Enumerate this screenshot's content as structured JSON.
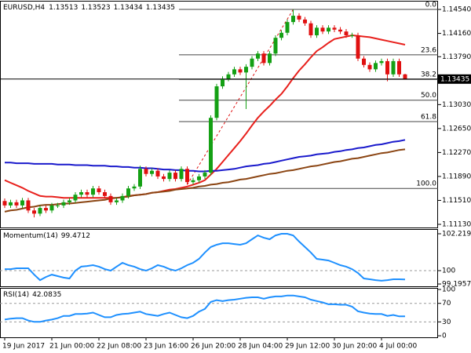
{
  "chart_data": [
    {
      "type": "candlestick",
      "header": {
        "symbol": "EURUSD,H4",
        "ohlc": [
          1.13513,
          1.13523,
          1.13434,
          1.13435
        ]
      },
      "categories": [
        "19 Jun 2017",
        null,
        null,
        null,
        null,
        null,
        null,
        null,
        "21 Jun 00:00",
        null,
        null,
        null,
        null,
        null,
        null,
        null,
        "22 Jun 08:00",
        null,
        null,
        null,
        null,
        null,
        null,
        null,
        "23 Jun 16:00",
        null,
        null,
        null,
        null,
        null,
        null,
        null,
        "26 Jun 20:00",
        null,
        null,
        null,
        null,
        null,
        null,
        null,
        "28 Jun 04:00",
        null,
        null,
        null,
        null,
        null,
        null,
        null,
        "29 Jun 12:00",
        null,
        null,
        null,
        null,
        null,
        null,
        null,
        "30 Jun 20:00",
        null,
        null,
        null,
        null,
        null,
        null,
        null,
        "4 Jul 00:00",
        null,
        null,
        null,
        null
      ],
      "open": [
        1.115,
        1.1143,
        1.1148,
        1.1143,
        1.1151,
        1.1135,
        1.113,
        1.1139,
        1.1135,
        1.1143,
        1.1143,
        1.1148,
        1.1151,
        1.116,
        1.1164,
        1.116,
        1.117,
        1.1164,
        1.1158,
        1.1148,
        1.1151,
        1.1158,
        1.117,
        1.1173,
        1.1201,
        1.1193,
        1.1198,
        1.1189,
        1.1185,
        1.1195,
        1.1185,
        1.1201,
        1.118,
        1.1183,
        1.1189,
        1.1195,
        1.1282,
        1.1332,
        1.1344,
        1.1351,
        1.1359,
        1.1354,
        1.1363,
        1.1376,
        1.1384,
        1.1369,
        1.1384,
        1.1409,
        1.1417,
        1.1434,
        1.1444,
        1.1438,
        1.1432,
        1.1413,
        1.1425,
        1.1419,
        1.1425,
        1.1422,
        1.1419,
        1.1413,
        1.1413,
        1.1376,
        1.1366,
        1.1359,
        1.1369,
        1.1372,
        1.1351,
        1.1372,
        1.1351
      ],
      "high": [
        1.1154,
        1.1152,
        1.1152,
        1.1155,
        1.1155,
        1.1139,
        1.1143,
        1.1143,
        1.1147,
        1.1147,
        1.1152,
        1.1155,
        1.1164,
        1.1168,
        1.1168,
        1.1174,
        1.1174,
        1.1168,
        1.1162,
        1.1155,
        1.1162,
        1.1174,
        1.1177,
        1.1206,
        1.1205,
        1.1202,
        1.1202,
        1.1193,
        1.1199,
        1.1199,
        1.1205,
        1.1205,
        1.1187,
        1.1193,
        1.1199,
        1.1286,
        1.1336,
        1.1348,
        1.1355,
        1.1363,
        1.1363,
        1.1367,
        1.138,
        1.1388,
        1.1388,
        1.1388,
        1.1413,
        1.1421,
        1.1438,
        1.1454,
        1.1448,
        1.1442,
        1.1436,
        1.1429,
        1.1429,
        1.1429,
        1.1429,
        1.1426,
        1.1423,
        1.1417,
        1.1417,
        1.138,
        1.137,
        1.1373,
        1.1376,
        1.1376,
        1.1376,
        1.1376,
        1.1352
      ],
      "low": [
        1.1139,
        1.1139,
        1.1139,
        1.1139,
        1.1131,
        1.1124,
        1.1126,
        1.1131,
        1.1131,
        1.1139,
        1.1139,
        1.1144,
        1.1147,
        1.1156,
        1.1156,
        1.1156,
        1.116,
        1.1154,
        1.1144,
        1.1144,
        1.1147,
        1.1154,
        1.1166,
        1.1169,
        1.1189,
        1.1189,
        1.1185,
        1.1181,
        1.1181,
        1.1181,
        1.1181,
        1.1176,
        1.1176,
        1.1179,
        1.1185,
        1.1191,
        1.1278,
        1.1328,
        1.134,
        1.1347,
        1.135,
        1.1296,
        1.1359,
        1.1372,
        1.1365,
        1.1365,
        1.138,
        1.1405,
        1.1413,
        1.143,
        1.1434,
        1.1428,
        1.1409,
        1.1409,
        1.1415,
        1.1415,
        1.1418,
        1.1415,
        1.1409,
        1.1409,
        1.1372,
        1.1362,
        1.1355,
        1.1355,
        1.1365,
        1.134,
        1.1347,
        1.1347,
        1.1343
      ],
      "close": [
        1.1143,
        1.1148,
        1.1143,
        1.1151,
        1.1135,
        1.113,
        1.1139,
        1.1135,
        1.1143,
        1.1143,
        1.1148,
        1.1151,
        1.116,
        1.1164,
        1.116,
        1.117,
        1.1164,
        1.1158,
        1.1148,
        1.1151,
        1.1158,
        1.117,
        1.1173,
        1.1201,
        1.1193,
        1.1198,
        1.1189,
        1.1185,
        1.1195,
        1.1185,
        1.1201,
        1.118,
        1.1183,
        1.1189,
        1.1195,
        1.1282,
        1.1332,
        1.1344,
        1.1351,
        1.1359,
        1.1354,
        1.1363,
        1.1376,
        1.1384,
        1.1369,
        1.1384,
        1.1409,
        1.1417,
        1.1434,
        1.1444,
        1.1438,
        1.1432,
        1.1413,
        1.1425,
        1.1419,
        1.1425,
        1.1422,
        1.1419,
        1.1413,
        1.1413,
        1.1376,
        1.1366,
        1.1359,
        1.1369,
        1.1372,
        1.1351,
        1.1372,
        1.1351,
        1.13435
      ],
      "up_color": "#14a014",
      "down_color": "#e01010",
      "overlays": [
        {
          "color": "#e8201c",
          "values": [
            1.1183,
            1.1179,
            1.1175,
            1.1171,
            1.1166,
            1.1162,
            1.1158,
            1.1157,
            1.1157,
            1.1156,
            1.1155,
            1.1155,
            1.1155,
            1.1155,
            1.1155,
            1.1155,
            1.1155,
            1.1155,
            1.1155,
            1.1155,
            1.1156,
            1.1158,
            1.1159,
            1.116,
            1.1161,
            1.1163,
            1.1164,
            1.1166,
            1.1168,
            1.1169,
            1.1171,
            1.1173,
            1.1176,
            1.1179,
            1.1183,
            1.1192,
            1.1201,
            1.1212,
            1.1223,
            1.1234,
            1.1245,
            1.1257,
            1.127,
            1.1282,
            1.1292,
            1.1301,
            1.1311,
            1.132,
            1.1332,
            1.1345,
            1.1357,
            1.1367,
            1.1378,
            1.1388,
            1.1394,
            1.1401,
            1.1407,
            1.1409,
            1.1411,
            1.1413,
            1.1412,
            1.1411,
            1.141,
            1.1408,
            1.1406,
            1.1404,
            1.1402,
            1.14,
            1.1398
          ]
        },
        {
          "color": "#1a1acc",
          "values": [
            1.1211,
            1.1211,
            1.121,
            1.121,
            1.121,
            1.1209,
            1.1209,
            1.1209,
            1.1209,
            1.1208,
            1.1208,
            1.1208,
            1.1207,
            1.1207,
            1.1207,
            1.1206,
            1.1206,
            1.1206,
            1.1205,
            1.1205,
            1.1204,
            1.1204,
            1.1203,
            1.1203,
            1.1202,
            1.1202,
            1.1201,
            1.12,
            1.12,
            1.1199,
            1.1199,
            1.1198,
            1.1198,
            1.1197,
            1.1197,
            1.1198,
            1.1198,
            1.1199,
            1.12,
            1.1201,
            1.1203,
            1.1205,
            1.1206,
            1.1207,
            1.1209,
            1.121,
            1.1212,
            1.1214,
            1.1216,
            1.1218,
            1.122,
            1.1221,
            1.1222,
            1.1224,
            1.1225,
            1.1226,
            1.1228,
            1.1229,
            1.1231,
            1.1232,
            1.1234,
            1.1235,
            1.1237,
            1.1239,
            1.124,
            1.1242,
            1.1244,
            1.1245,
            1.1247
          ]
        },
        {
          "color": "#8b4513",
          "values": [
            1.1133,
            1.1135,
            1.1136,
            1.1138,
            1.114,
            1.1141,
            1.1143,
            1.1144,
            1.1144,
            1.1145,
            1.1146,
            1.1146,
            1.1147,
            1.1148,
            1.1149,
            1.115,
            1.1151,
            1.1152,
            1.1154,
            1.1155,
            1.1156,
            1.1157,
            1.1159,
            1.116,
            1.1161,
            1.1163,
            1.1164,
            1.1165,
            1.1166,
            1.1168,
            1.1169,
            1.117,
            1.1171,
            1.1173,
            1.1174,
            1.1176,
            1.1177,
            1.1179,
            1.118,
            1.1182,
            1.1184,
            1.1185,
            1.1187,
            1.1189,
            1.1191,
            1.1193,
            1.1194,
            1.1196,
            1.1198,
            1.1199,
            1.1201,
            1.1203,
            1.1205,
            1.1206,
            1.1208,
            1.121,
            1.1212,
            1.1213,
            1.1215,
            1.1217,
            1.1218,
            1.122,
            1.1222,
            1.1224,
            1.1226,
            1.1227,
            1.1229,
            1.1231,
            1.1232
          ]
        }
      ],
      "fib": [
        {
          "label": "0.0",
          "value": 1.1454
        },
        {
          "label": "23.6",
          "value": 1.1382
        },
        {
          "label": "38.2",
          "value": 1.1343
        },
        {
          "label": "50.0",
          "value": 1.131
        },
        {
          "label": "61.8",
          "value": 1.1276
        },
        {
          "label": "100.0",
          "value": 1.117
        }
      ],
      "fib_color": "#e01010",
      "ylim": [
        1.1108,
        1.14665
      ],
      "yticks": [
        {
          "value": 1.1454,
          "label": "1.14540"
        },
        {
          "value": 1.1416,
          "label": "1.14160"
        },
        {
          "value": 1.1379,
          "label": "1.13790"
        },
        {
          "value": 1.1303,
          "label": "1.13030"
        },
        {
          "value": 1.1265,
          "label": "1.12650"
        },
        {
          "value": 1.1227,
          "label": "1.12270"
        },
        {
          "value": 1.1189,
          "label": "1.11890"
        },
        {
          "value": 1.1151,
          "label": "1.11510"
        },
        {
          "value": 1.1113,
          "label": "1.11130"
        }
      ]
    },
    {
      "type": "line",
      "title": "Momentum(14)",
      "last": 99.4712,
      "color": "#1e90ff",
      "values": [
        100.09,
        100.09,
        100.14,
        100.14,
        100.14,
        99.76,
        99.43,
        99.62,
        99.76,
        99.67,
        99.58,
        99.53,
        100.0,
        100.24,
        100.28,
        100.33,
        100.24,
        100.09,
        100.0,
        100.24,
        100.47,
        100.33,
        100.24,
        100.09,
        100.0,
        100.14,
        100.33,
        100.24,
        100.09,
        100.0,
        100.14,
        100.33,
        100.47,
        100.71,
        101.09,
        101.42,
        101.56,
        101.65,
        101.65,
        101.6,
        101.56,
        101.65,
        101.89,
        102.12,
        101.98,
        101.89,
        102.12,
        102.22,
        102.22,
        102.12,
        101.75,
        101.42,
        101.09,
        100.71,
        100.66,
        100.61,
        100.47,
        100.33,
        100.24,
        100.09,
        99.86,
        99.53,
        99.48,
        99.43,
        99.39,
        99.43,
        99.48,
        99.48,
        99.4712
      ],
      "ylim": [
        99.056,
        102.455
      ],
      "yticks": [
        102.2195,
        100,
        99.1957
      ],
      "levels": [
        100
      ]
    },
    {
      "type": "line",
      "title": "RSI(14)",
      "last": 42.0835,
      "color": "#1e90ff",
      "values": [
        35,
        37,
        38,
        38,
        33,
        30,
        30,
        33,
        35,
        38,
        43,
        43,
        47,
        47,
        48,
        50,
        45,
        40,
        40,
        45,
        47,
        48,
        50,
        52,
        47,
        45,
        43,
        47,
        50,
        45,
        40,
        38,
        43,
        52,
        58,
        73,
        77,
        75,
        77,
        78,
        80,
        82,
        83,
        83,
        80,
        83,
        85,
        85,
        87,
        87,
        85,
        83,
        78,
        75,
        72,
        68,
        68,
        67,
        67,
        63,
        53,
        50,
        48,
        47,
        47,
        43,
        45,
        42,
        42.0835
      ],
      "ylim": [
        -3.3,
        101.7
      ],
      "yticks": [
        100,
        70,
        30,
        0
      ],
      "levels": [
        70,
        30
      ]
    }
  ]
}
